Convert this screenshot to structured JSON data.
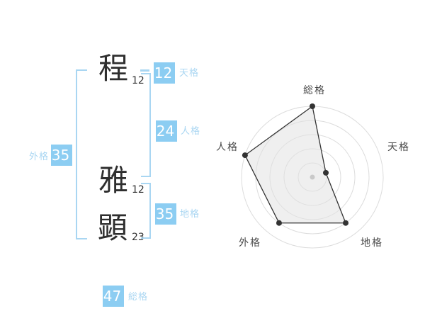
{
  "colors": {
    "badge_bg": "#8ccdf2",
    "accent_label": "#a9d6f2",
    "bracket": "#a9d6f2",
    "badge_text": "#ffffff",
    "kanji": "#2e2e2e",
    "stroke_count": "#333333",
    "radar_ring": "#dcdcdc",
    "radar_fill": "rgba(226,226,226,0.55)",
    "radar_line": "#333333",
    "radar_dot": "#333333",
    "radar_center_dot": "#c9c9c9",
    "axis_label": "#4a4a4a"
  },
  "name": {
    "characters": [
      {
        "char": "程",
        "strokes": "12"
      },
      {
        "char": "雅",
        "strokes": "12"
      },
      {
        "char": "顕",
        "strokes": "23"
      }
    ],
    "kaku": {
      "tenkaku": {
        "label": "天格",
        "value": "12"
      },
      "jinkaku": {
        "label": "人格",
        "value": "24"
      },
      "chikaku": {
        "label": "地格",
        "value": "35"
      },
      "gaikaku": {
        "label": "外格",
        "value": "35"
      },
      "soukaku": {
        "label": "総格",
        "value": "47"
      }
    }
  },
  "chart_data": {
    "type": "radar",
    "categories": [
      "総格",
      "天格",
      "地格",
      "外格",
      "人格"
    ],
    "values": [
      100,
      20,
      80,
      80,
      100
    ],
    "max": 100,
    "rings": [
      20,
      40,
      60,
      80,
      100
    ],
    "grid": "concentric-circles",
    "legend": "none"
  }
}
